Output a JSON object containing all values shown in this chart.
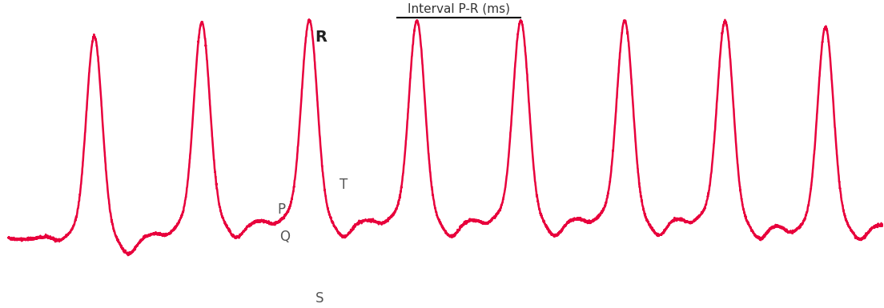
{
  "title": "Interval P-R (ms)",
  "ecg_color": "#e8003c",
  "background_color": "#ffffff",
  "line_width": 1.8,
  "labels": {
    "R": {
      "text": "R",
      "fontsize": 14,
      "fontweight": "bold",
      "color": "#222222"
    },
    "P": {
      "text": "P",
      "fontsize": 12,
      "fontweight": "normal",
      "color": "#555555"
    },
    "Q": {
      "text": "Q",
      "fontsize": 12,
      "fontweight": "normal",
      "color": "#555555"
    },
    "T": {
      "text": "T",
      "fontsize": 12,
      "fontweight": "normal",
      "color": "#555555"
    },
    "S": {
      "text": "S",
      "fontsize": 12,
      "fontweight": "normal",
      "color": "#555555"
    }
  },
  "beat_positions": [
    0.12,
    0.27,
    0.42,
    0.57,
    0.715,
    0.86,
    1.0,
    1.14
  ],
  "xlim": [
    -0.01,
    1.22
  ],
  "ylim": [
    -1.15,
    4.3
  ],
  "r_height": 3.6,
  "noise_level": 0.012
}
